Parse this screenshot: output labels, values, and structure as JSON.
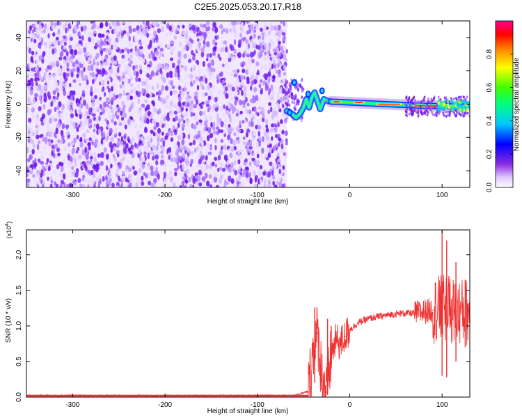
{
  "figure": {
    "title": "C2E5.2025.053.20.17.R18"
  },
  "chart_data": [
    {
      "type": "heatmap",
      "xlabel": "Height of straight line (km)",
      "ylabel": "Frequency (Hz)",
      "xlim": [
        -350,
        130
      ],
      "ylim": [
        -50,
        50
      ],
      "xticks": [
        -300,
        -200,
        -100,
        0,
        100
      ],
      "xtick_labels": [
        "-300",
        "-200",
        "-100",
        "0",
        "100"
      ],
      "yticks": [
        -40,
        -20,
        0,
        20,
        40
      ],
      "ytick_labels": [
        "-40",
        "-20",
        "0",
        "20",
        "40"
      ],
      "colorbar": {
        "label": "Normalized spectral amplitude",
        "range": [
          0,
          1
        ],
        "ticks": [
          0.0,
          0.2,
          0.4,
          0.6,
          0.8
        ],
        "tick_labels": [
          "0.0",
          "0.2",
          "0.4",
          "0.6",
          "0.8"
        ],
        "colors": [
          "#ffffff",
          "#d9b3ff",
          "#7a1cf0",
          "#0000ff",
          "#00e0ff",
          "#00ff40",
          "#ffff00",
          "#ff8000",
          "#ff0000",
          "#ff00a0"
        ]
      },
      "regions": [
        {
          "name": "noise",
          "x_range": [
            -350,
            -68
          ],
          "freq_range": [
            -50,
            50
          ],
          "amplitude_range": [
            0.0,
            0.15
          ]
        },
        {
          "name": "signal-onset",
          "x_range": [
            -68,
            -20
          ],
          "amplitude_range": [
            0.2,
            0.7
          ]
        },
        {
          "name": "carrier",
          "x_range": [
            -20,
            130
          ],
          "center_freq": [
            [
              -20,
              1.5
            ],
            [
              0,
              1
            ],
            [
              40,
              0
            ],
            [
              80,
              -1
            ],
            [
              130,
              -1.5
            ]
          ],
          "amplitude_range": [
            0.4,
            1.0
          ]
        }
      ],
      "grid": false
    },
    {
      "type": "line",
      "xlabel": "Height of straight line (km)",
      "ylabel": "SNR (10 * v/v)",
      "y_exponent_label": "(x10",
      "y_exponent": "4",
      "xlim": [
        -350,
        130
      ],
      "ylim": [
        0,
        23500
      ],
      "xticks": [
        -300,
        -200,
        -100,
        0,
        100
      ],
      "xtick_labels": [
        "-300",
        "-200",
        "-100",
        "0",
        "100"
      ],
      "yticks": [
        0,
        5000,
        10000,
        15000,
        20000
      ],
      "ytick_labels": [
        "0.0",
        "0.5",
        "1.0",
        "1.5",
        "2.0"
      ],
      "color": "#ee3333",
      "x": [
        -350,
        -300,
        -200,
        -100,
        -60,
        -45,
        -40,
        -35,
        -30,
        -25,
        -20,
        -15,
        -10,
        -5,
        0,
        10,
        20,
        30,
        40,
        50,
        60,
        70,
        80,
        90,
        100,
        110,
        120,
        130
      ],
      "y": [
        200,
        200,
        200,
        200,
        220,
        800,
        6000,
        9000,
        3000,
        700,
        6000,
        8000,
        7500,
        8500,
        9500,
        10500,
        11000,
        11300,
        11500,
        11700,
        11800,
        11800,
        12000,
        12200,
        12500,
        12200,
        12000,
        12000
      ],
      "envelope": [
        {
          "x": -38,
          "low": 2000,
          "high": 12600
        },
        {
          "x": -24,
          "low": 300,
          "high": 11000
        },
        {
          "x": -20,
          "low": 4000,
          "high": 10000
        },
        {
          "x": 100,
          "low": 3000,
          "high": 23500
        },
        {
          "x": 105,
          "low": 2800,
          "high": 22000
        },
        {
          "x": 115,
          "low": 5000,
          "high": 19000
        },
        {
          "x": 125,
          "low": 7000,
          "high": 16500
        }
      ],
      "grid": false
    }
  ]
}
